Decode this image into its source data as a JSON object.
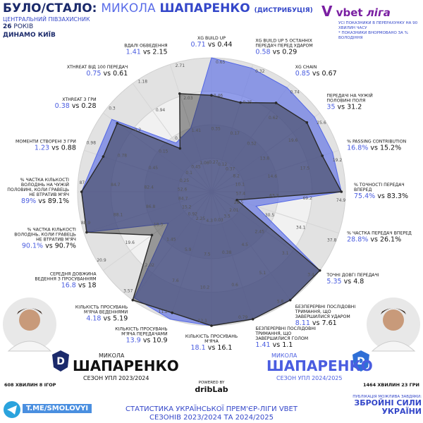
{
  "header": {
    "title_parts": [
      "БУЛО/СТАЛО:",
      "МИКОЛА",
      "ШАПАРЕНКО",
      "(ДИСТРИБУЦІЯ)"
    ],
    "position": "ЦЕНТРАЛЬНИЙ ПІВЗАХИСНИК",
    "age": "26",
    "age_unit": "РОКІВ",
    "club": "ДИНАМО КИЇВ"
  },
  "logo": {
    "brand": "vbet",
    "league": "ліга"
  },
  "notes": [
    "УСІ ПОКАЗНИКИ В ПЕРЕРАХУНКУ НА 90 ХВИЛИН ЧАСУ",
    "* ПОКАЗНИКИ ВНОРМОВАНО ЗА % ВОЛОДІННЯ"
  ],
  "chart_data": {
    "type": "radar",
    "categories": [
      "XG BUILD UP",
      "XG BUILD UP 5 ОСТАННІХ ПЕРЕДАЧ ПЕРЕД УДАРОМ",
      "XG CHAIN",
      "ПЕРЕДАЧІ НА ЧУЖІЙ ПОЛОВИНІ ПОЛЯ",
      "% PASSING CONTRIBUTION",
      "% ТОЧНОСТІ ПЕРЕДАЧ ВПЕРЕД",
      "% ЧАСТКА ПЕРЕДАЧ ВПЕРЕД",
      "ТОЧНІ ДОВГІ ПЕРЕДАЧІ",
      "БЕЗПЕРЕРВНІ ПОСЛІДОВНІ ТРИМАННЯ, ЩО ЗАВЕРШИЛИСЯ УДАРОМ",
      "БЕЗПЕРЕРВНІ ПОСЛІДОВНІ ТРИМАННЯ, ЩО ЗАВЕРШИЛИСЯ ГОЛОМ",
      "КІЛЬКІСТЬ ПРОСУВАНЬ М'ЯЧА",
      "КІЛЬКІСТЬ ПРОСУВАНЬ М'ЯЧА ПЕРЕДАЧАМИ",
      "КІЛЬКІСТЬ ПРОСУВАНЬ М'ЯЧА ВЕДЕННЯМИ",
      "СЕРЕДНЯ ДОВЖИНА ВЕДЕННЯ З ПРОСУВАННЯМ",
      "% ЧАСТКА КІЛЬКОСТІ ВОЛОДІНЬ, КОЛИ ГРАВЕЦЬ НЕ ВТРАТИВ М'ЯЧ",
      "% ЧАСТКА КІЛЬКОСТІ ВОЛОДІНЬ НА ЧУЖІЙ ПОЛОВИНІ, КОЛИ ГРАВЕЦЬ НЕ ВТРАТИВ М'ЯЧ",
      "МОМЕНТИ СТВОРЕНІ З ГРИ",
      "XTHREAT З ГРИ",
      "XTHREAT ВІД 100 ПЕРЕДАЧ",
      "ВДАЛІ ОБВЕДЕННЯ"
    ],
    "stats_new": [
      "0.71",
      "0.58",
      "0.85",
      "35",
      "16.8%",
      "75.4%",
      "28.8%",
      "5.35",
      "8.11",
      "1.41",
      "18.1",
      "13.9",
      "4.18",
      "16.8",
      "90.1%",
      "89%",
      "1.23",
      "0.38",
      "0.75",
      "1.41"
    ],
    "stats_old": [
      "0.44",
      "0.29",
      "0.67",
      "31.2",
      "15.2%",
      "83.3%",
      "26.1%",
      "4.8",
      "7.61",
      "1.1",
      "16.1",
      "10.9",
      "5.19",
      "18",
      "90.7%",
      "89.1%",
      "0.88",
      "0.28",
      "0.61",
      "2.15"
    ],
    "vs": "vs",
    "scales": [
      [
        0.27,
        0.35,
        0.46,
        0.65
      ],
      [
        0.12,
        0.17,
        0.25,
        0.32
      ],
      [
        0.37,
        0.52,
        0.62,
        0.74
      ],
      [
        8.2,
        13.8,
        19.6,
        25.6
      ],
      [
        10.1,
        14.6,
        17.5,
        19.2
      ],
      [
        57.4,
        63.2,
        69.2,
        74.9
      ],
      [
        28.5,
        30.5,
        34.1,
        37.8
      ],
      [
        2.01,
        2.45,
        3.1,
        3.4
      ],
      [
        3.5,
        4.5,
        5.1,
        5.8
      ],
      [
        0.03,
        0.38,
        0.6,
        0.79
      ],
      [
        4.3,
        7.5,
        10.2,
        12.1
      ],
      [
        2.25,
        5.9,
        7.6,
        11.2
      ],
      [
        0.92,
        1.45,
        2.02,
        3.57
      ],
      [
        15.2,
        18.3,
        19.6,
        20.9
      ],
      [
        84.7,
        86.8,
        88.1,
        88.9
      ],
      [
        52.6,
        82.4,
        84.7,
        87
      ],
      [
        0.25,
        0.45,
        0.78,
        0.98
      ],
      [
        0.1,
        0.15,
        0.2,
        0.3
      ],
      [
        0.45,
        0.7,
        0.94,
        1.18
      ],
      [
        1.06,
        1.41,
        2.03,
        2.71
      ]
    ],
    "rlim": [
      0,
      100
    ],
    "series": [
      {
        "name": "СЕЗОН УПЛ 2024/2025",
        "color": "#5266e6",
        "values": [
          100,
          97,
          96,
          95,
          95,
          97,
          35,
          100,
          100,
          100,
          100,
          100,
          98,
          40,
          98,
          97,
          90,
          92,
          45,
          50
        ]
      },
      {
        "name": "СЕЗОН УПЛ 2023/2024",
        "color": "#2a2a2a",
        "values": [
          72,
          70,
          82,
          88,
          87,
          97,
          20,
          100,
          100,
          100,
          100,
          95,
          100,
          55,
          98,
          97,
          85,
          87,
          40,
          77
        ]
      }
    ]
  },
  "players": {
    "old": {
      "first": "МИКОЛА",
      "last": "ШАПАРЕНКО",
      "minutes": "608 ХВИЛИН 8 ІГОР"
    },
    "new": {
      "first": "МИКОЛА",
      "last": "ШАПАРЕНКО",
      "minutes": "1464 ХВИЛИН 23 ГРИ"
    }
  },
  "powered": {
    "by": "POWERED BY",
    "brand": "dribLab"
  },
  "telegram": "T.ME/SMOLOVYI",
  "footer": {
    "line1": "СТАТИСТИКА УКРАЇНСЬКОЇ ПРЕМ'ЄР-ЛІГИ VBET",
    "line2": "СЕЗОНІВ 2023/2024 ТА 2024/2025"
  },
  "sponsor": {
    "intro": "ПУБЛІКАЦІЯ МОЖЛИВА ЗАВДЯКИ:",
    "line1": "ЗБРОЙНІ СИЛИ",
    "line2": "УКРАЇНИ"
  }
}
